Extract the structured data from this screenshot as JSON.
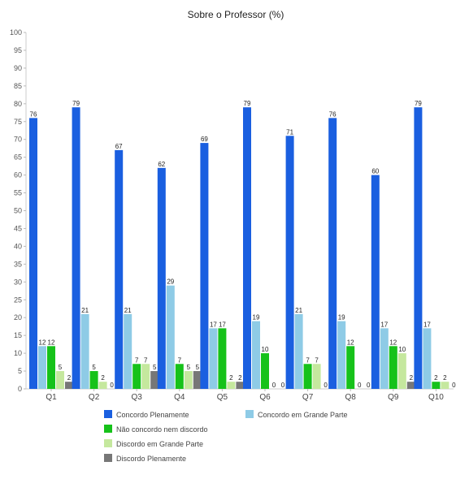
{
  "chart_data": {
    "type": "bar",
    "title": "Sobre o Professor (%)",
    "xlabel": "",
    "ylabel": "",
    "ylim": [
      0,
      100
    ],
    "yticks": [
      0,
      5,
      10,
      15,
      20,
      25,
      30,
      35,
      40,
      45,
      50,
      55,
      60,
      65,
      70,
      75,
      80,
      85,
      90,
      95,
      100
    ],
    "grid": false,
    "legend_position": "bottom",
    "categories": [
      "Q1",
      "Q2",
      "Q3",
      "Q4",
      "Q5",
      "Q6",
      "Q7",
      "Q8",
      "Q9",
      "Q10"
    ],
    "series": [
      {
        "name": "Concordo Plenamente",
        "color": "#1a5fe0",
        "values": [
          76,
          79,
          67,
          62,
          69,
          79,
          71,
          76,
          60,
          79
        ]
      },
      {
        "name": "Concordo em Grande Parte",
        "color": "#8ecbe6",
        "values": [
          12,
          21,
          21,
          29,
          17,
          19,
          21,
          19,
          17,
          17
        ]
      },
      {
        "name": "Não concordo nem discordo",
        "color": "#16c21a",
        "values": [
          12,
          5,
          7,
          7,
          17,
          10,
          7,
          12,
          12,
          2
        ]
      },
      {
        "name": "Discordo em Grande Parte",
        "color": "#c5e89e",
        "values": [
          5,
          2,
          7,
          5,
          2,
          0,
          7,
          0,
          10,
          2
        ]
      },
      {
        "name": "Discordo Plenamente",
        "color": "#777777",
        "values": [
          2,
          0,
          5,
          5,
          2,
          0,
          0,
          0,
          2,
          0
        ]
      }
    ]
  }
}
